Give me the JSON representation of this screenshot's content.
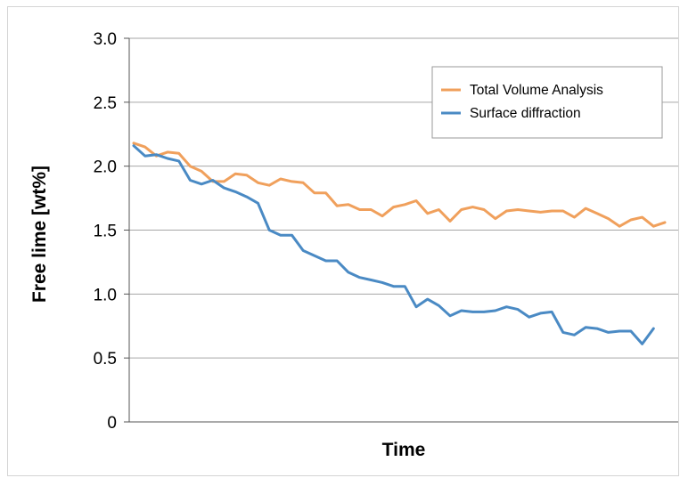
{
  "chart_data": {
    "type": "line",
    "title": "",
    "xlabel": "Time",
    "ylabel": "Free lime [wt%]",
    "ylim": [
      0,
      3
    ],
    "yticks": [
      0,
      0.5,
      1.0,
      1.5,
      2.0,
      2.5,
      3.0
    ],
    "ytick_labels": [
      "0",
      "0.5",
      "1.0",
      "1.5",
      "2.0",
      "2.5",
      "3.0"
    ],
    "grid": true,
    "x_tick_labels": false,
    "legend_position": "top-right",
    "series": [
      {
        "name": "Total Volume Analysis",
        "color": "#f0a05c",
        "values": [
          2.18,
          2.15,
          2.08,
          2.11,
          2.1,
          2.0,
          1.96,
          1.88,
          1.88,
          1.94,
          1.93,
          1.87,
          1.85,
          1.9,
          1.88,
          1.87,
          1.79,
          1.79,
          1.69,
          1.7,
          1.66,
          1.66,
          1.61,
          1.68,
          1.7,
          1.73,
          1.63,
          1.66,
          1.57,
          1.66,
          1.68,
          1.66,
          1.59,
          1.65,
          1.66,
          1.65,
          1.64,
          1.65,
          1.65,
          1.6,
          1.67,
          1.63,
          1.59,
          1.53,
          1.58,
          1.6,
          1.53,
          1.56
        ]
      },
      {
        "name": "Surface diffraction",
        "color": "#4a8ac4",
        "values": [
          2.16,
          2.08,
          2.09,
          2.06,
          2.04,
          1.89,
          1.86,
          1.89,
          1.83,
          1.8,
          1.76,
          1.71,
          1.5,
          1.46,
          1.46,
          1.34,
          1.3,
          1.26,
          1.26,
          1.17,
          1.13,
          1.11,
          1.09,
          1.06,
          1.06,
          0.9,
          0.96,
          0.91,
          0.83,
          0.87,
          0.86,
          0.86,
          0.87,
          0.9,
          0.88,
          0.82,
          0.85,
          0.86,
          0.7,
          0.68,
          0.74,
          0.73,
          0.7,
          0.71,
          0.71,
          0.61,
          0.73
        ]
      }
    ]
  }
}
